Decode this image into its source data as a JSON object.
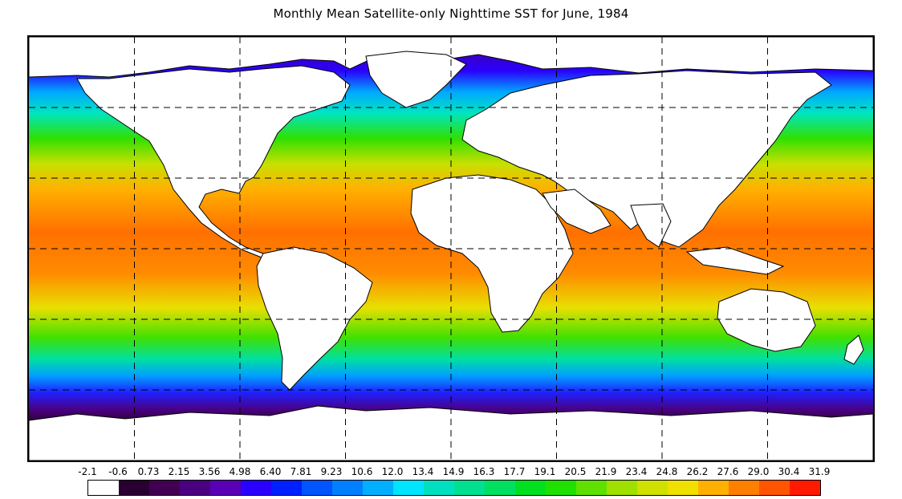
{
  "title": "Monthly Mean Satellite-only Nighttime SST for June, 1984",
  "colorbar": {
    "ticks": [
      "-2.1",
      "-0.6",
      "0.73",
      "2.15",
      "3.56",
      "4.98",
      "6.40",
      "7.81",
      "9.23",
      "10.6",
      "12.0",
      "13.4",
      "14.9",
      "16.3",
      "17.7",
      "19.1",
      "20.5",
      "21.9",
      "23.4",
      "24.8",
      "26.2",
      "27.6",
      "29.0",
      "30.4",
      "31.9"
    ],
    "colors": [
      "#ffffff",
      "#2a0033",
      "#420052",
      "#4b0082",
      "#5a00b4",
      "#2a00ff",
      "#0020ff",
      "#0055ff",
      "#0080ff",
      "#00b0ff",
      "#00e5ff",
      "#00e0c0",
      "#00e090",
      "#00e060",
      "#00e020",
      "#20e000",
      "#60e000",
      "#a0e000",
      "#d0e000",
      "#f0e000",
      "#ffb000",
      "#ff8000",
      "#ff5500",
      "#ff1a00"
    ]
  },
  "map": {
    "projection": "equirectangular",
    "longitude_gridlines": "every 45°",
    "latitude_gridlines": "every 30°",
    "land_color": "#ffffff",
    "coastline_color": "#000000"
  }
}
